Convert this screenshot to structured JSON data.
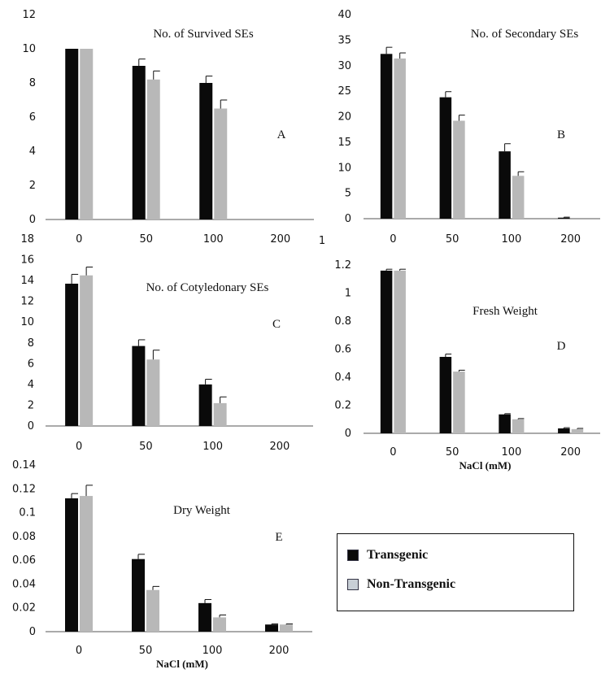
{
  "colors": {
    "transgenic": "#0a0a0a",
    "non_transgenic": "#b8b8b8",
    "axis": "#555555",
    "error_bar": "#111111"
  },
  "legend": {
    "entries": [
      {
        "label": "Transgenic",
        "color": "#0a0a0a"
      },
      {
        "label": "Non-Transgenic",
        "color": "#c8cfd6"
      }
    ]
  },
  "chart_data": [
    {
      "id": "A",
      "type": "bar",
      "title": "No. of Survived SEs",
      "letter": "A",
      "categories": [
        "0",
        "50",
        "100",
        "200"
      ],
      "ylim": [
        0,
        12
      ],
      "yticks": [
        0,
        2,
        4,
        6,
        8,
        10,
        12
      ],
      "ytick_labels": [
        "0",
        "2",
        "4",
        "6",
        "8",
        "10",
        "12"
      ],
      "xlabel": "",
      "ylabel": "",
      "grid": false,
      "series": [
        {
          "name": "Transgenic",
          "values": [
            10,
            9,
            8,
            0
          ],
          "errors": [
            0,
            0.4,
            0.4,
            0
          ]
        },
        {
          "name": "Non-Transgenic",
          "values": [
            10,
            8.2,
            6.5,
            0
          ],
          "errors": [
            0,
            0.5,
            0.5,
            0
          ]
        }
      ]
    },
    {
      "id": "B",
      "type": "bar",
      "title": "No. of Secondary SEs",
      "letter": "B",
      "categories": [
        "0",
        "50",
        "100",
        "200"
      ],
      "ylim": [
        0,
        40
      ],
      "yticks": [
        0,
        5,
        10,
        15,
        20,
        25,
        30,
        35,
        40
      ],
      "ytick_labels": [
        "0",
        "5",
        "10",
        "15",
        "20",
        "25",
        "30",
        "35",
        "40"
      ],
      "xlabel": "",
      "ylabel": "",
      "grid": false,
      "series": [
        {
          "name": "Transgenic",
          "values": [
            32.3,
            23.8,
            13.2,
            0.2
          ],
          "errors": [
            1.3,
            1.1,
            1.5,
            0.1
          ]
        },
        {
          "name": "Non-Transgenic",
          "values": [
            31.4,
            19.2,
            8.4,
            0
          ],
          "errors": [
            1.1,
            1.1,
            0.8,
            0
          ]
        }
      ]
    },
    {
      "id": "C",
      "type": "bar",
      "title": "No. of Cotyledonary SEs",
      "letter": "C",
      "categories": [
        "0",
        "50",
        "100",
        "200"
      ],
      "ylim": [
        0,
        18
      ],
      "yticks": [
        0,
        2,
        4,
        6,
        8,
        10,
        12,
        14,
        16,
        18
      ],
      "ytick_labels": [
        "0",
        "2",
        "4",
        "6",
        "8",
        "10",
        "12",
        "14",
        "16",
        "18"
      ],
      "xlabel": "",
      "ylabel": "",
      "grid": false,
      "series": [
        {
          "name": "Transgenic",
          "values": [
            13.7,
            7.7,
            4.0,
            0
          ],
          "errors": [
            0.9,
            0.6,
            0.5,
            0
          ]
        },
        {
          "name": "Non-Transgenic",
          "values": [
            14.5,
            6.4,
            2.2,
            0
          ],
          "errors": [
            0.8,
            0.9,
            0.6,
            0
          ]
        }
      ]
    },
    {
      "id": "D",
      "type": "bar",
      "title": "Fresh Weight",
      "letter": "D",
      "categories": [
        "0",
        "50",
        "100",
        "200"
      ],
      "ylim": [
        0,
        1.2
      ],
      "yticks": [
        0,
        0.2,
        0.4,
        0.6,
        0.8,
        1,
        1.2
      ],
      "ytick_labels": [
        "0",
        "0.2",
        "0.4",
        "0.6",
        "0.8",
        "1",
        "1.2"
      ],
      "xlabel": "NaCl (mM)",
      "ylabel": "",
      "grid": false,
      "series": [
        {
          "name": "Transgenic",
          "values": [
            1.16,
            0.545,
            0.135,
            0.035
          ],
          "errors": [
            0.01,
            0.02,
            0.005,
            0.005
          ]
        },
        {
          "name": "Non-Transgenic",
          "values": [
            1.16,
            0.44,
            0.1,
            0.03
          ],
          "errors": [
            0.01,
            0.01,
            0.005,
            0.005
          ]
        }
      ]
    },
    {
      "id": "E",
      "type": "bar",
      "title": "Dry Weight",
      "letter": "E",
      "categories": [
        "0",
        "50",
        "100",
        "200"
      ],
      "ylim": [
        0,
        0.14
      ],
      "yticks": [
        0,
        0.02,
        0.04,
        0.06,
        0.08,
        0.1,
        0.12,
        0.14
      ],
      "ytick_labels": [
        "0",
        "0.02",
        "0.04",
        "0.06",
        "0.08",
        "0.1",
        "0.12",
        "0.14"
      ],
      "xlabel": "NaCl (mM)",
      "ylabel": "",
      "grid": false,
      "series": [
        {
          "name": "Transgenic",
          "values": [
            0.112,
            0.061,
            0.024,
            0.006
          ],
          "errors": [
            0.004,
            0.004,
            0.003,
            0.0005
          ]
        },
        {
          "name": "Non-Transgenic",
          "values": [
            0.114,
            0.035,
            0.012,
            0.006
          ],
          "errors": [
            0.009,
            0.003,
            0.002,
            0.0005
          ]
        }
      ]
    }
  ],
  "stray_label": "1"
}
